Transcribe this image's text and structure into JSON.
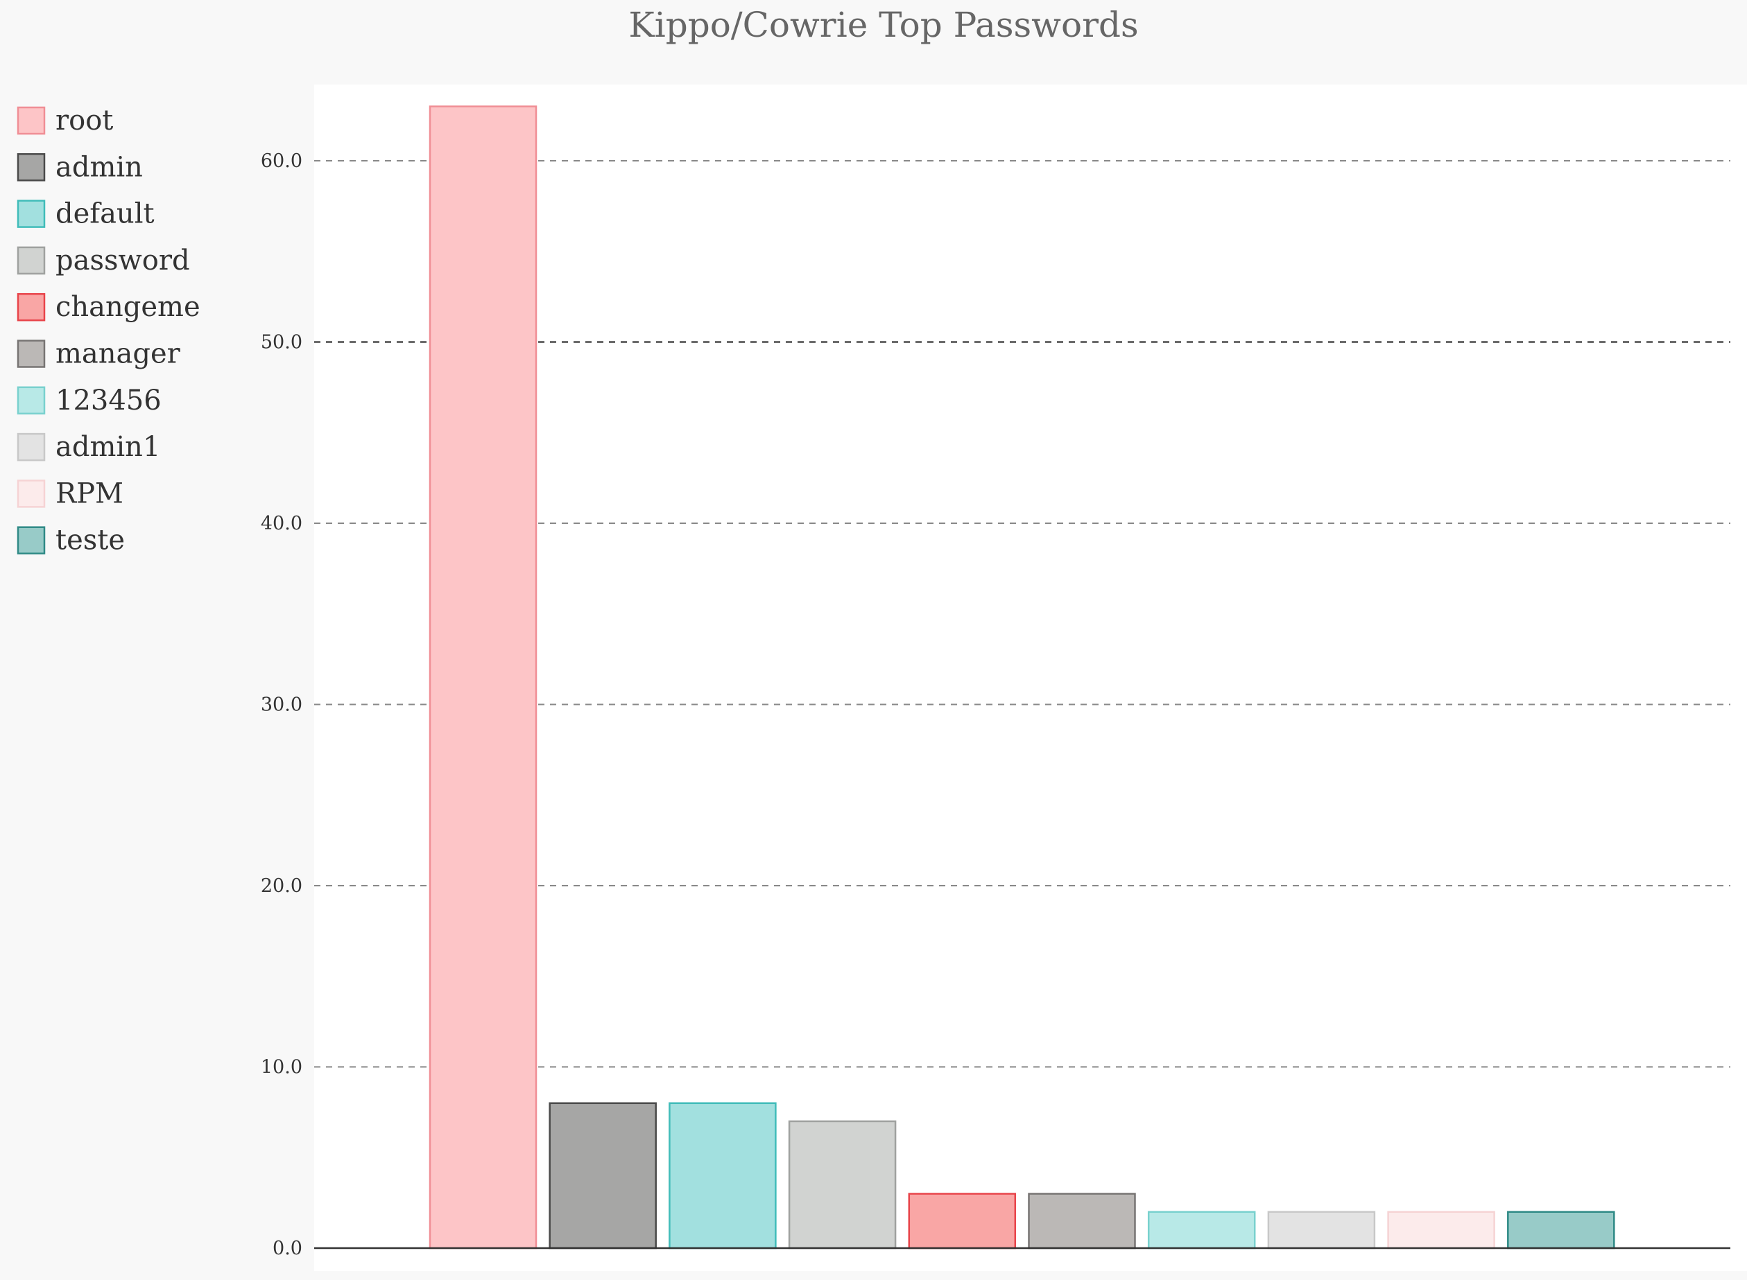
{
  "chart_data": {
    "type": "bar",
    "title": "Kippo/Cowrie Top Passwords",
    "xlabel": "",
    "ylabel": "",
    "ylim": [
      0,
      64
    ],
    "yticks": [
      "0.0",
      "10.0",
      "20.0",
      "30.0",
      "40.0",
      "50.0",
      "60.0"
    ],
    "grid": true,
    "legend": "left",
    "series": [
      {
        "name": "root",
        "value": 63,
        "fill": "#fdc5c7",
        "stroke": "#f08e95"
      },
      {
        "name": "admin",
        "value": 8,
        "fill": "#a6a6a5",
        "stroke": "#4a4a4a"
      },
      {
        "name": "default",
        "value": 8,
        "fill": "#a2e0df",
        "stroke": "#40bcb9"
      },
      {
        "name": "password",
        "value": 7,
        "fill": "#d1d3d1",
        "stroke": "#9fa19f"
      },
      {
        "name": "changeme",
        "value": 3,
        "fill": "#f9a6a5",
        "stroke": "#e8444a"
      },
      {
        "name": "manager",
        "value": 3,
        "fill": "#bbb8b6",
        "stroke": "#777473"
      },
      {
        "name": "123456",
        "value": 2,
        "fill": "#b8e9e7",
        "stroke": "#79d1ce"
      },
      {
        "name": "admin1",
        "value": 2,
        "fill": "#e3e3e3",
        "stroke": "#c8c8c8"
      },
      {
        "name": "RPM",
        "value": 2,
        "fill": "#fcebeb",
        "stroke": "#f6d3d4"
      },
      {
        "name": "teste",
        "value": 2,
        "fill": "#98cbc8",
        "stroke": "#2f8a86"
      }
    ]
  }
}
